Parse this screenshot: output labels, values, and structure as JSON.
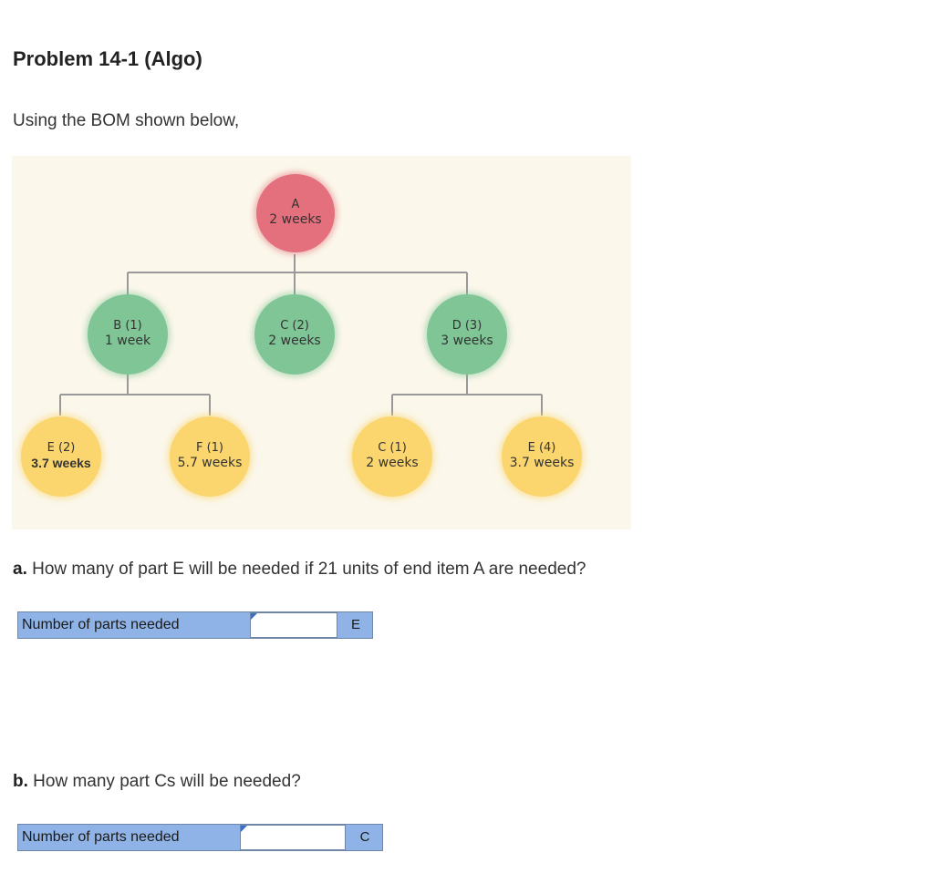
{
  "problem": {
    "title": "Problem 14-1 (Algo)",
    "intro": "Using the BOM shown below,"
  },
  "bom": {
    "nodes": {
      "a": {
        "name": "A",
        "lead_time": "2 weeks"
      },
      "b": {
        "name": "B (1)",
        "lead_time": "1 week"
      },
      "c2": {
        "name": "C (2)",
        "lead_time": "2 weeks"
      },
      "d": {
        "name": "D (3)",
        "lead_time": "3 weeks"
      },
      "e2": {
        "name": "E (2)",
        "lead_time": "3.7 weeks"
      },
      "f": {
        "name": "F (1)",
        "lead_time": "5.7 weeks"
      },
      "c1": {
        "name": "C (1)",
        "lead_time": "2 weeks"
      },
      "e4": {
        "name": "E (4)",
        "lead_time": "3.7 weeks"
      }
    },
    "colors": {
      "background": "#fbf7ea",
      "end_item": "#e3707c",
      "level1": "#7fc596",
      "level2": "#fbd66e",
      "connector": "#999999"
    }
  },
  "question_a": {
    "prefix": "a.",
    "text": " How many of part E will be needed if 21 units of end item A are needed?",
    "answer_label": "Number of parts needed",
    "answer_value": "",
    "unit": "E"
  },
  "question_b": {
    "prefix": "b.",
    "text": " How many part Cs will be needed?",
    "answer_label": "Number of parts needed",
    "answer_value": "",
    "unit": "C"
  }
}
